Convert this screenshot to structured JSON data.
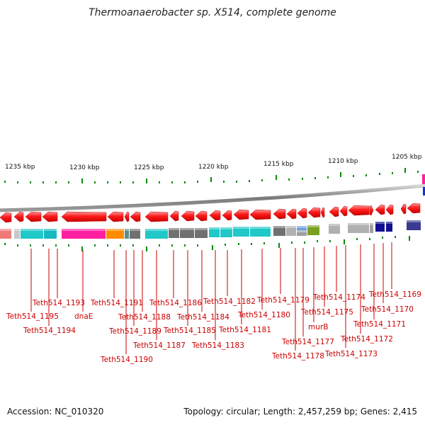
{
  "title": "Thermoanaerobacter sp. X514, complete genome",
  "footer": {
    "accession": "Accession: NC_010320",
    "summary": "Topology: circular; Length: 2,457,259 bp; Genes: 2,415"
  },
  "scale": {
    "labels": [
      "1235 kbp",
      "1230 kbp",
      "1225 kbp",
      "1220 kbp",
      "1215 kbp",
      "1210 kbp",
      "1205 kbp"
    ]
  },
  "gene_labels": [
    "Teth514_1195",
    "Teth514_1194",
    "Teth514_1193",
    "dnaE",
    "Teth514_1191",
    "Teth514_1190",
    "Teth514_1189",
    "Teth514_1188",
    "Teth514_1187",
    "Teth514_1186",
    "Teth514_1185",
    "Teth514_1184",
    "Teth514_1183",
    "Teth514_1182",
    "Teth514_1181",
    "Teth514_1180",
    "Teth514_1179",
    "Teth514_1178",
    "Teth514_1177",
    "murB",
    "Teth514_1175",
    "Teth514_1174",
    "Teth514_1173",
    "Teth514_1172",
    "Teth514_1171",
    "Teth514_1170",
    "Teth514_1169"
  ],
  "colors": {
    "gene_arrow": "#ff0000",
    "label_text": "#cc0000",
    "tick": "#0a8a0a",
    "backbone": "#808080"
  }
}
